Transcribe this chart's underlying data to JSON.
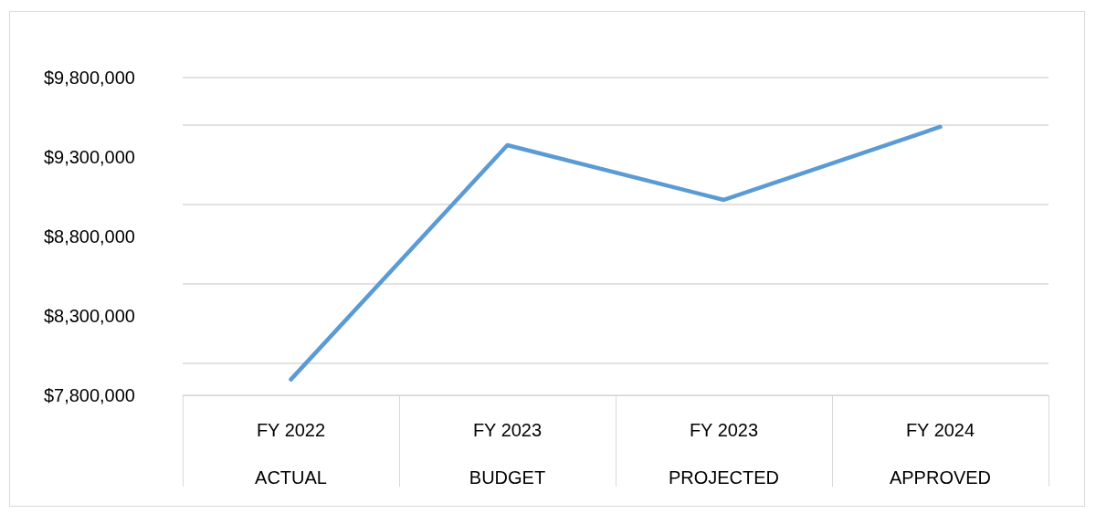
{
  "chart_data": {
    "type": "line",
    "categories": [
      "FY 2022\nACTUAL",
      "FY 2023\nBUDGET",
      "FY 2023\nPROJECTED",
      "FY 2024\nAPPROVED"
    ],
    "series": [
      {
        "color": "#5b9bd5",
        "values": [
          7900000,
          9375000,
          9030000,
          9490000
        ]
      }
    ],
    "ylim": [
      7800000,
      9800000
    ],
    "yticks": [
      {
        "value": 7800000,
        "label": "$7,800,000"
      },
      {
        "value": 8300000,
        "label": "$8,300,000"
      },
      {
        "value": 8800000,
        "label": "$8,800,000"
      },
      {
        "value": 9300000,
        "label": "$9,300,000"
      },
      {
        "value": 9800000,
        "label": "$9,800,000"
      }
    ],
    "grid": "y",
    "marker": "none",
    "line_style": "solid"
  }
}
